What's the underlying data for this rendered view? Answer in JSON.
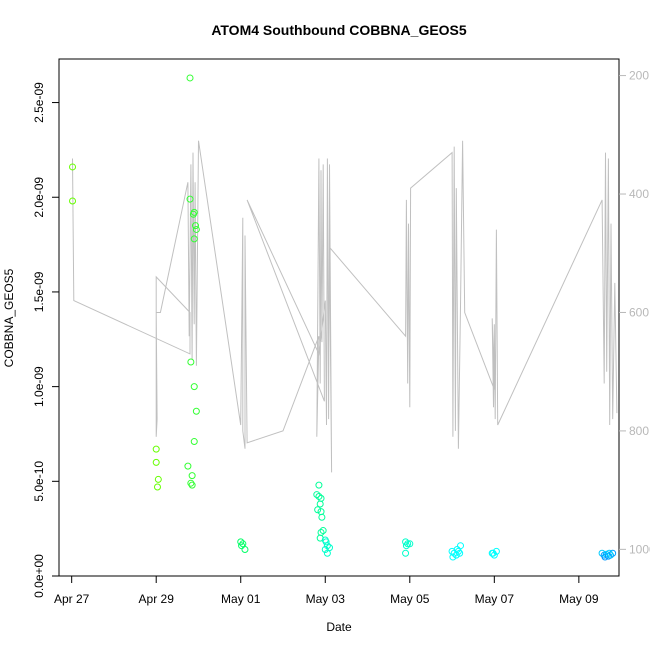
{
  "chart_data": {
    "type": "scatter",
    "title": "ATOM4 Southbound COBBNA_GEOS5",
    "xlabel": "Date",
    "ylabel": "COBBNA_GEOS5",
    "x_tick_labels": [
      "Apr 27",
      "Apr 29",
      "May 01",
      "May 03",
      "May 05",
      "May 07",
      "May 09"
    ],
    "x_tick_days": [
      0,
      2,
      4,
      6,
      8,
      10,
      12
    ],
    "xlim_days": [
      -0.3,
      12.95
    ],
    "y_tick_labels": [
      "0.0e+00",
      "5.0e-10",
      "1.0e-09",
      "1.5e-09",
      "2.0e-09",
      "2.5e-09"
    ],
    "y_tick_values": [
      0,
      5e-10,
      1e-09,
      1.5e-09,
      2e-09,
      2.5e-09
    ],
    "ylim": [
      0,
      2.73e-09
    ],
    "y2_tick_labels": [
      "200",
      "400",
      "600",
      "800",
      "1000"
    ],
    "y2_tick_values": [
      200,
      400,
      600,
      800,
      1000
    ],
    "y2lim_reversed": [
      1045,
      172
    ],
    "grid": false,
    "point_colors": [
      "#66ff00",
      "#33ff33",
      "#00ff66",
      "#00ff99",
      "#00ffcc",
      "#00ffff",
      "#00ccff",
      "#0099ff"
    ],
    "line_color": "#c0c0c0",
    "series": [
      {
        "kind": "scatter",
        "points": [
          [
            0.02,
            2.16e-09,
            0
          ],
          [
            0.02,
            1.98e-09,
            0
          ],
          [
            2.0,
            6.7e-10,
            0
          ],
          [
            2.0,
            6e-10,
            0
          ],
          [
            2.05,
            5.1e-10,
            0
          ],
          [
            2.03,
            4.7e-10,
            0
          ],
          [
            2.8,
            2.63e-09,
            1
          ],
          [
            2.8,
            1.99e-09,
            1
          ],
          [
            2.9,
            1.92e-09,
            1
          ],
          [
            2.88,
            1.91e-09,
            1
          ],
          [
            2.93,
            1.85e-09,
            1
          ],
          [
            2.95,
            1.83e-09,
            1
          ],
          [
            2.9,
            1.78e-09,
            1
          ],
          [
            2.82,
            1.13e-09,
            1
          ],
          [
            2.9,
            1e-09,
            1
          ],
          [
            2.95,
            8.7e-10,
            1
          ],
          [
            2.9,
            7.1e-10,
            1
          ],
          [
            2.75,
            5.8e-10,
            1
          ],
          [
            2.85,
            5.3e-10,
            1
          ],
          [
            2.82,
            4.9e-10,
            1
          ],
          [
            2.85,
            4.8e-10,
            1
          ],
          [
            4.0,
            1.8e-10,
            2
          ],
          [
            4.05,
            1.7e-10,
            2
          ],
          [
            4.02,
            1.6e-10,
            2
          ],
          [
            4.1,
            1.4e-10,
            2
          ],
          [
            5.85,
            4.8e-10,
            3
          ],
          [
            5.8,
            4.3e-10,
            3
          ],
          [
            5.85,
            4.2e-10,
            3
          ],
          [
            5.9,
            4.1e-10,
            3
          ],
          [
            5.88,
            3.8e-10,
            3
          ],
          [
            5.82,
            3.5e-10,
            3
          ],
          [
            5.9,
            3.4e-10,
            3
          ],
          [
            5.92,
            3.1e-10,
            3
          ],
          [
            5.95,
            2.4e-10,
            3
          ],
          [
            5.9,
            2.3e-10,
            3
          ],
          [
            5.88,
            2e-10,
            3
          ],
          [
            6.0,
            1.9e-10,
            4
          ],
          [
            6.02,
            1.8e-10,
            4
          ],
          [
            6.05,
            1.6e-10,
            4
          ],
          [
            6.1,
            1.5e-10,
            4
          ],
          [
            6.0,
            1.4e-10,
            4
          ],
          [
            6.05,
            1.2e-10,
            4
          ],
          [
            7.9,
            1.8e-10,
            4
          ],
          [
            7.95,
            1.7e-10,
            4
          ],
          [
            8.0,
            1.7e-10,
            4
          ],
          [
            7.92,
            1.6e-10,
            4
          ],
          [
            7.9,
            1.2e-10,
            4
          ],
          [
            9.0,
            1.3e-10,
            5
          ],
          [
            9.05,
            1.2e-10,
            5
          ],
          [
            9.1,
            1.1e-10,
            5
          ],
          [
            9.15,
            1.3e-10,
            5
          ],
          [
            9.2,
            1.6e-10,
            5
          ],
          [
            9.12,
            1.4e-10,
            5
          ],
          [
            9.02,
            1e-10,
            5
          ],
          [
            9.18,
            1.2e-10,
            5
          ],
          [
            9.95,
            1.2e-10,
            5
          ],
          [
            10.0,
            1.1e-10,
            5
          ],
          [
            10.05,
            1.3e-10,
            5
          ],
          [
            9.97,
            1.2e-10,
            5
          ],
          [
            12.55,
            1.2e-10,
            6
          ],
          [
            12.6,
            1.1e-10,
            7
          ],
          [
            12.65,
            1.15e-10,
            6
          ],
          [
            12.7,
            1.05e-10,
            7
          ],
          [
            12.75,
            1.1e-10,
            6
          ],
          [
            12.8,
            1.2e-10,
            7
          ],
          [
            12.62,
            1e-10,
            7
          ],
          [
            12.72,
            1.2e-10,
            6
          ]
        ]
      },
      {
        "kind": "line",
        "axis": "right",
        "points": [
          [
            0.02,
            340
          ],
          [
            0.05,
            580
          ],
          [
            2.8,
            670
          ],
          [
            2.8,
            600
          ],
          [
            2.0,
            540
          ],
          [
            2.0,
            810
          ],
          [
            2.02,
            780
          ],
          [
            2.0,
            600
          ],
          [
            2.1,
            600
          ],
          [
            2.75,
            380
          ],
          [
            2.78,
            640
          ],
          [
            2.82,
            350
          ],
          [
            2.85,
            680
          ],
          [
            2.87,
            330
          ],
          [
            2.9,
            620
          ],
          [
            2.92,
            380
          ],
          [
            2.95,
            690
          ],
          [
            3.0,
            310
          ],
          [
            4.0,
            790
          ],
          [
            4.05,
            440
          ],
          [
            4.05,
            760
          ],
          [
            4.05,
            800
          ],
          [
            4.1,
            830
          ],
          [
            4.1,
            470
          ],
          [
            4.15,
            820
          ],
          [
            5.0,
            800
          ],
          [
            5.85,
            640
          ],
          [
            5.8,
            810
          ],
          [
            5.85,
            340
          ],
          [
            5.88,
            720
          ],
          [
            5.9,
            360
          ],
          [
            5.92,
            650
          ],
          [
            5.95,
            350
          ],
          [
            5.98,
            750
          ],
          [
            4.15,
            410
          ],
          [
            5.85,
            670
          ],
          [
            6.0,
            580
          ],
          [
            6.03,
            790
          ],
          [
            6.05,
            340
          ],
          [
            6.08,
            780
          ],
          [
            6.1,
            350
          ],
          [
            6.15,
            870
          ],
          [
            6.1,
            490
          ],
          [
            7.9,
            640
          ],
          [
            7.92,
            410
          ],
          [
            7.95,
            720
          ],
          [
            7.97,
            450
          ],
          [
            8.0,
            760
          ],
          [
            8.02,
            390
          ],
          [
            9.0,
            330
          ],
          [
            9.02,
            810
          ],
          [
            9.05,
            320
          ],
          [
            9.08,
            800
          ],
          [
            9.1,
            390
          ],
          [
            9.15,
            830
          ],
          [
            9.2,
            590
          ],
          [
            9.25,
            310
          ],
          [
            9.3,
            600
          ],
          [
            10.0,
            730
          ],
          [
            9.95,
            610
          ],
          [
            9.98,
            760
          ],
          [
            10.0,
            620
          ],
          [
            10.02,
            780
          ],
          [
            10.05,
            460
          ],
          [
            10.08,
            790
          ],
          [
            12.55,
            410
          ],
          [
            12.6,
            720
          ],
          [
            12.63,
            330
          ],
          [
            12.66,
            700
          ],
          [
            12.7,
            340
          ],
          [
            12.73,
            790
          ],
          [
            12.76,
            450
          ],
          [
            12.8,
            780
          ],
          [
            12.85,
            550
          ],
          [
            12.9,
            770
          ]
        ]
      }
    ]
  }
}
